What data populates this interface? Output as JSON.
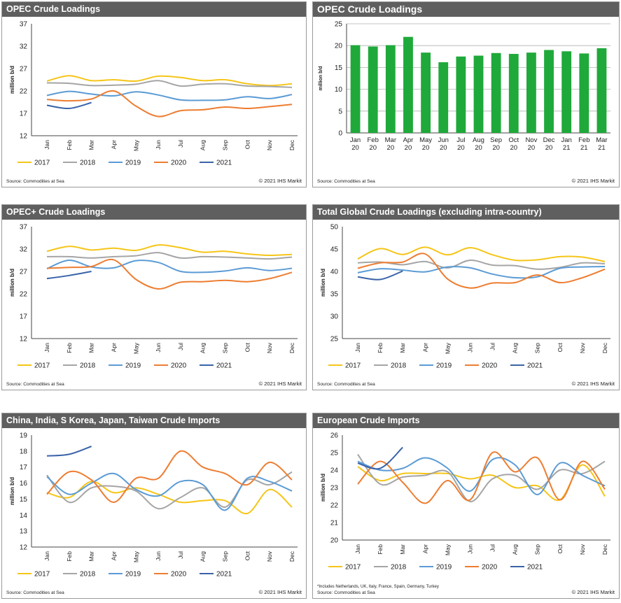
{
  "months": [
    "Jan",
    "Feb",
    "Mar",
    "Apr",
    "May",
    "Jun",
    "Jul",
    "Aug",
    "Sep",
    "Oct",
    "Nov",
    "Dec"
  ],
  "series_colors": {
    "2017": "#f5c518",
    "2018": "#a5a5a5",
    "2019": "#5b9bd5",
    "2020": "#ed7d31",
    "2021": "#3a63a8"
  },
  "legend": [
    "2017",
    "2018",
    "2019",
    "2020",
    "2021"
  ],
  "source": "Source: Commodities at Sea",
  "copyright": "© 2021 IHS Markit",
  "chart_data": [
    {
      "id": "opec-loadings-line",
      "type": "line",
      "title": "OPEC Crude Loadings",
      "ylabel": "million b/d",
      "ylim": [
        12,
        37
      ],
      "yticks": [
        12,
        17,
        22,
        27,
        32,
        37
      ],
      "series": [
        {
          "name": "2017",
          "values": [
            24.2,
            25.4,
            24.3,
            24.5,
            24.2,
            25.3,
            25.0,
            24.3,
            24.5,
            23.6,
            23.2,
            23.6
          ]
        },
        {
          "name": "2018",
          "values": [
            23.8,
            23.7,
            23.2,
            23.3,
            23.5,
            24.3,
            23.1,
            23.5,
            23.6,
            23.1,
            23.0,
            22.8
          ]
        },
        {
          "name": "2019",
          "values": [
            21.0,
            21.9,
            21.3,
            20.9,
            21.8,
            21.1,
            20.0,
            19.9,
            20.0,
            20.7,
            20.3,
            21.2
          ]
        },
        {
          "name": "2020",
          "values": [
            20.1,
            19.8,
            20.2,
            22.0,
            18.6,
            16.3,
            17.6,
            17.8,
            18.4,
            18.1,
            18.5,
            19.0
          ]
        },
        {
          "name": "2021",
          "values": [
            18.8,
            18.1,
            19.4
          ]
        }
      ]
    },
    {
      "id": "opec-loadings-bar",
      "type": "bar",
      "title": "OPEC Crude Loadings",
      "ylabel": "million b/d",
      "ylim": [
        0,
        25
      ],
      "yticks": [
        0,
        5,
        10,
        15,
        20,
        25
      ],
      "color": "#1fa93a",
      "categories": [
        "Jan\n20",
        "Feb\n20",
        "Mar\n20",
        "Apr\n20",
        "May\n20",
        "Jun\n20",
        "Jul\n20",
        "Aug\n20",
        "Sep\n20",
        "Oct\n20",
        "Nov\n20",
        "Dec\n20",
        "Jan\n21",
        "Feb\n21",
        "Mar\n21"
      ],
      "values": [
        20.1,
        19.8,
        20.1,
        22.0,
        18.4,
        16.2,
        17.5,
        17.7,
        18.3,
        18.1,
        18.4,
        19.0,
        18.7,
        18.2,
        19.4
      ]
    },
    {
      "id": "opec-plus-loadings",
      "type": "line",
      "title": "OPEC+ Crude Loadings",
      "ylabel": "million b/d",
      "ylim": [
        12,
        37
      ],
      "yticks": [
        12,
        17,
        22,
        27,
        32,
        37
      ],
      "series": [
        {
          "name": "2017",
          "values": [
            31.5,
            32.6,
            31.8,
            32.2,
            31.7,
            32.9,
            32.3,
            31.3,
            31.5,
            30.9,
            30.6,
            30.8
          ]
        },
        {
          "name": "2018",
          "values": [
            30.3,
            30.3,
            30.0,
            30.3,
            30.5,
            31.2,
            30.0,
            30.3,
            30.2,
            30.0,
            29.8,
            30.2
          ]
        },
        {
          "name": "2019",
          "values": [
            27.6,
            29.5,
            28.0,
            27.8,
            29.4,
            29.0,
            27.0,
            26.8,
            27.1,
            27.8,
            27.2,
            27.7
          ]
        },
        {
          "name": "2020",
          "values": [
            27.7,
            27.9,
            28.1,
            29.6,
            25.2,
            23.1,
            24.6,
            24.7,
            25.0,
            24.7,
            25.4,
            26.8
          ]
        },
        {
          "name": "2021",
          "values": [
            25.4,
            26.1,
            27.0
          ]
        }
      ]
    },
    {
      "id": "global-loadings",
      "type": "line",
      "title": "Total Global Crude Loadings (excluding intra-country)",
      "ylabel": "million b/d",
      "ylim": [
        25,
        50
      ],
      "yticks": [
        25,
        30,
        35,
        40,
        45,
        50
      ],
      "series": [
        {
          "name": "2017",
          "values": [
            42.8,
            45.1,
            43.8,
            45.4,
            43.7,
            45.3,
            43.7,
            42.5,
            42.6,
            43.3,
            43.2,
            42.2
          ]
        },
        {
          "name": "2018",
          "values": [
            41.9,
            42.1,
            41.5,
            42.2,
            40.8,
            42.5,
            41.4,
            41.3,
            40.5,
            40.9,
            41.9,
            41.7
          ]
        },
        {
          "name": "2019",
          "values": [
            39.7,
            40.6,
            40.3,
            39.9,
            41.0,
            40.8,
            39.4,
            38.6,
            38.8,
            40.7,
            41.0,
            41.1
          ]
        },
        {
          "name": "2020",
          "values": [
            40.7,
            41.9,
            42.1,
            43.9,
            38.3,
            36.3,
            37.4,
            37.5,
            39.2,
            37.5,
            38.6,
            40.5
          ]
        },
        {
          "name": "2021",
          "values": [
            38.8,
            38.2,
            40.1
          ]
        }
      ]
    },
    {
      "id": "asia-imports",
      "type": "line",
      "title": "China, India, S Korea, Japan, Taiwan Crude Imports",
      "ylabel": "million b/d",
      "ylim": [
        12,
        19
      ],
      "yticks": [
        12,
        13,
        14,
        15,
        16,
        17,
        18,
        19
      ],
      "series": [
        {
          "name": "2017",
          "values": [
            15.4,
            15.1,
            16.1,
            15.4,
            15.7,
            15.3,
            14.8,
            14.9,
            14.9,
            14.1,
            15.6,
            14.5
          ]
        },
        {
          "name": "2018",
          "values": [
            16.5,
            14.8,
            15.7,
            15.8,
            15.5,
            14.4,
            15.1,
            15.7,
            14.5,
            16.2,
            15.9,
            16.7
          ]
        },
        {
          "name": "2019",
          "values": [
            16.4,
            15.3,
            16.0,
            16.6,
            15.6,
            15.2,
            16.1,
            15.9,
            14.3,
            16.3,
            16.1,
            15.5
          ]
        },
        {
          "name": "2020",
          "values": [
            15.3,
            16.7,
            16.2,
            14.8,
            16.3,
            16.3,
            18.0,
            17.0,
            16.6,
            15.9,
            17.3,
            16.2
          ]
        },
        {
          "name": "2021",
          "values": [
            17.7,
            17.8,
            18.3
          ]
        }
      ]
    },
    {
      "id": "europe-imports",
      "type": "line",
      "title": "European Crude Imports",
      "ylabel": "million b/d",
      "ylim": [
        20,
        26
      ],
      "yticks": [
        20,
        21,
        22,
        23,
        24,
        25,
        26
      ],
      "footnote": "*Includes Netherlands, UK, Italy, France, Spain, Germany, Turkey",
      "series": [
        {
          "name": "2017",
          "values": [
            24.2,
            23.4,
            23.8,
            23.8,
            23.8,
            23.5,
            23.7,
            23.0,
            23.1,
            22.3,
            24.3,
            22.5
          ]
        },
        {
          "name": "2018",
          "values": [
            24.9,
            23.2,
            23.6,
            23.7,
            23.9,
            22.2,
            23.5,
            23.7,
            22.9,
            24.0,
            23.8,
            24.5
          ]
        },
        {
          "name": "2019",
          "values": [
            24.5,
            24.0,
            24.1,
            24.7,
            24.1,
            22.8,
            24.6,
            24.3,
            22.6,
            24.4,
            23.7,
            23.1
          ]
        },
        {
          "name": "2020",
          "values": [
            23.2,
            24.5,
            23.3,
            22.1,
            23.4,
            22.3,
            25.0,
            23.9,
            24.7,
            22.3,
            24.5,
            22.9
          ]
        },
        {
          "name": "2021",
          "values": [
            24.4,
            24.1,
            25.3
          ]
        }
      ]
    }
  ]
}
